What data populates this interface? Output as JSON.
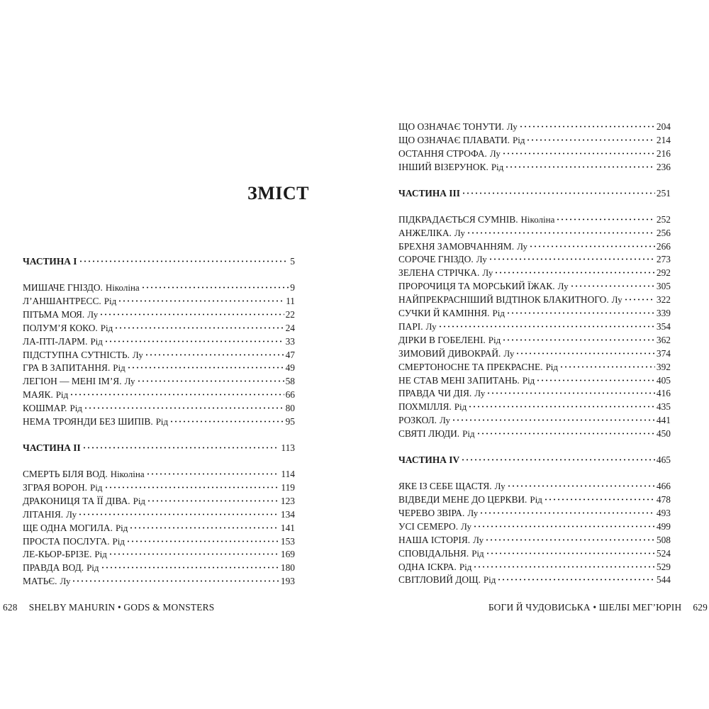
{
  "left_page": {
    "heading": "ЗМІСТ",
    "rows": [
      {
        "kind": "part",
        "title": "ЧАСТИНА I",
        "page": "5"
      },
      {
        "title": "МИШАЧЕ ГНІЗДО.",
        "narrator": "Ніколіна",
        "page": "9"
      },
      {
        "title": "Л’АНШАНТРЕСС.",
        "narrator": "Рід",
        "page": "11"
      },
      {
        "title": "ПІТЬМА МОЯ.",
        "narrator": "Лу",
        "page": "22"
      },
      {
        "title": "ПОЛУМ’Я КОКО.",
        "narrator": "Рід",
        "page": "24"
      },
      {
        "title": "ЛА-ПТІ-ЛАРМ.",
        "narrator": "Рід",
        "page": "33"
      },
      {
        "title": "ПІДСТУПНА СУТНІСТЬ.",
        "narrator": "Лу",
        "page": "47"
      },
      {
        "title": "ГРА В ЗАПИТАННЯ.",
        "narrator": "Рід",
        "page": "49"
      },
      {
        "title": "ЛЕГІОН — МЕНІ ІМ’Я.",
        "narrator": "Лу",
        "page": "58"
      },
      {
        "title": "МАЯК.",
        "narrator": "Рід",
        "page": "66"
      },
      {
        "title": "КОШМАР.",
        "narrator": "Рід",
        "page": "80"
      },
      {
        "title": "НЕМА ТРОЯНДИ БЕЗ ШИПІВ.",
        "narrator": "Рід",
        "page": "95"
      },
      {
        "kind": "part",
        "title": "ЧАСТИНА II",
        "page": "113"
      },
      {
        "title": "СМЕРТЬ БІЛЯ ВОД.",
        "narrator": "Ніколіна",
        "page": "114"
      },
      {
        "title": "ЗГРАЯ ВОРОН.",
        "narrator": "Рід",
        "page": "119"
      },
      {
        "title": "ДРАКОНИЦЯ ТА ЇЇ ДІВА.",
        "narrator": "Рід",
        "page": "123"
      },
      {
        "title": "ЛІТАНІЯ.",
        "narrator": "Лу",
        "page": "134"
      },
      {
        "title": "ЩЕ ОДНА МОГИЛА.",
        "narrator": "Рід",
        "page": "141"
      },
      {
        "title": "ПРОСТА ПОСЛУГА.",
        "narrator": "Рід",
        "page": "153"
      },
      {
        "title": "ЛЕ-КЬОР-БРІЗЕ.",
        "narrator": "Рід",
        "page": "169"
      },
      {
        "title": "ПРАВДА ВОД.",
        "narrator": "Рід",
        "page": "180"
      },
      {
        "title": "МАТЬЄ.",
        "narrator": "Лу",
        "page": "193"
      }
    ],
    "footer": {
      "page_number": "628",
      "author": "SHELBY MAHURIN",
      "bullet": "•",
      "book": "GODS & MONSTERS"
    }
  },
  "right_page": {
    "rows": [
      {
        "title": "ЩО ОЗНАЧАЄ ТОНУТИ.",
        "narrator": "Лу",
        "page": "204"
      },
      {
        "title": "ЩО ОЗНАЧАЄ ПЛАВАТИ.",
        "narrator": "Рід",
        "page": "214"
      },
      {
        "title": "ОСТАННЯ СТРОФА.",
        "narrator": "Лу",
        "page": "216"
      },
      {
        "title": "ІНШИЙ ВІЗЕРУНОК.",
        "narrator": "Рід",
        "page": "236"
      },
      {
        "kind": "part",
        "title": "ЧАСТИНА III",
        "page": "251"
      },
      {
        "title": "ПІДКРАДАЄТЬСЯ СУМНІВ.",
        "narrator": "Ніколіна",
        "page": "252"
      },
      {
        "title": "АНЖЕЛІКА.",
        "narrator": "Лу",
        "page": "256"
      },
      {
        "title": "БРЕХНЯ ЗАМОВЧАННЯМ.",
        "narrator": "Лу",
        "page": "266"
      },
      {
        "title": "СОРОЧЕ ГНІЗДО.",
        "narrator": "Лу",
        "page": "273"
      },
      {
        "title": "ЗЕЛЕНА СТРІЧКА.",
        "narrator": "Лу",
        "page": "292"
      },
      {
        "title": "ПРОРОЧИЦЯ ТА МОРСЬКИЙ ЇЖАК.",
        "narrator": "Лу",
        "page": "305"
      },
      {
        "title": "НАЙПРЕКРАСНІШИЙ ВІДТІНОК БЛАКИТНОГО.",
        "narrator": "Лу",
        "page": "322"
      },
      {
        "title": "СУЧКИ Й КАМІННЯ.",
        "narrator": "Рід",
        "page": "339"
      },
      {
        "title": "ПАРІ.",
        "narrator": "Лу",
        "page": "354"
      },
      {
        "title": "ДІРКИ В ГОБЕЛЕНІ.",
        "narrator": "Рід",
        "page": "362"
      },
      {
        "title": "ЗИМОВИЙ ДИВОКРАЙ.",
        "narrator": "Лу",
        "page": "374"
      },
      {
        "title": "СМЕРТОНОСНЕ ТА ПРЕКРАСНЕ.",
        "narrator": "Рід",
        "page": "392"
      },
      {
        "title": "НЕ СТАВ МЕНІ ЗАПИТАНЬ.",
        "narrator": "Рід",
        "page": "405"
      },
      {
        "title": "ПРАВДА ЧИ ДІЯ.",
        "narrator": "Лу",
        "page": "416"
      },
      {
        "title": "ПОХМІЛЛЯ.",
        "narrator": "Рід",
        "page": "435"
      },
      {
        "title": "РОЗКОЛ.",
        "narrator": "Лу",
        "page": "441"
      },
      {
        "title": "СВЯТІ ЛЮДИ.",
        "narrator": "Рід",
        "page": "450"
      },
      {
        "kind": "part",
        "title": "ЧАСТИНА IV",
        "page": "465"
      },
      {
        "title": "ЯКЕ ІЗ СЕБЕ ЩАСТЯ.",
        "narrator": "Лу",
        "page": "466"
      },
      {
        "title": "ВІДВЕДИ МЕНЕ ДО ЦЕРКВИ.",
        "narrator": "Рід",
        "page": "478"
      },
      {
        "title": "ЧЕРЕВО ЗВІРА.",
        "narrator": "Лу",
        "page": "493"
      },
      {
        "title": "УСІ СЕМЕРО.",
        "narrator": "Лу",
        "page": "499"
      },
      {
        "title": "НАША ІСТОРІЯ.",
        "narrator": "Лу",
        "page": "508"
      },
      {
        "title": "СПОВІДАЛЬНЯ.",
        "narrator": "Рід",
        "page": "524"
      },
      {
        "title": "ОДНА ІСКРА.",
        "narrator": "Рід",
        "page": "529"
      },
      {
        "title": "СВІТЛОВИЙ ДОЩ.",
        "narrator": "Рід",
        "page": "544"
      }
    ],
    "footer": {
      "book": "БОГИ Й ЧУДОВИСЬКА",
      "bullet": "•",
      "author": "ШЕЛБІ МЕГ’ЮРІН",
      "page_number": "629"
    }
  }
}
